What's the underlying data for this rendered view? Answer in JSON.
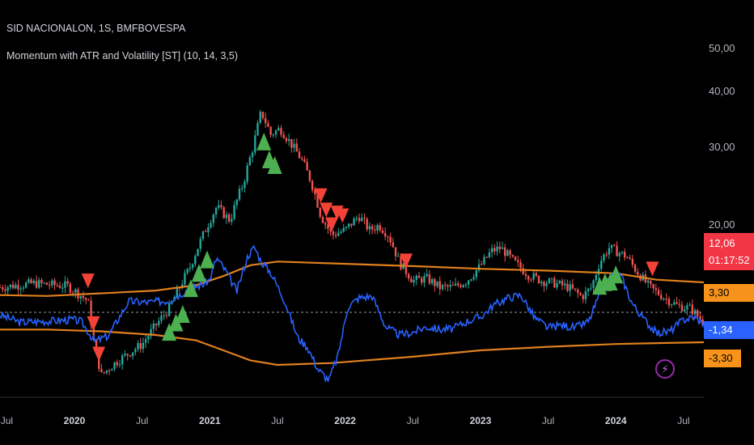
{
  "header": {
    "symbol_line": "SID NACIONALON, 1S, BMFBOVESPA",
    "indicator_line": "Momentum with ATR and Volatility [ST] (10, 14, 3,5)"
  },
  "badges": {
    "price": "12,06",
    "countdown": "01:17:52",
    "upper_band": "3,30",
    "momentum": "-1,34",
    "lower_band": "-3,30"
  },
  "colors": {
    "background": "#000000",
    "bull": "#26a69a",
    "bear": "#ef5350",
    "momentum_line": "#2962ff",
    "bands": "#e0801e",
    "buy_marker": "#4caf50",
    "sell_marker": "#f44336",
    "price_badge": "#f23645",
    "momentum_badge": "#2962ff",
    "band_badge": "#f7931a"
  },
  "chart_data": {
    "type": "line",
    "price_axis_ticks": [
      "50,00",
      "40,00",
      "30,00",
      "20,00"
    ],
    "price_axis_range": [
      8,
      55
    ],
    "x_axis_ticks": [
      {
        "label": "Jul",
        "year": false,
        "t": 2019.5
      },
      {
        "label": "2020",
        "year": true,
        "t": 2020.0
      },
      {
        "label": "Jul",
        "year": false,
        "t": 2020.5
      },
      {
        "label": "2021",
        "year": true,
        "t": 2021.0
      },
      {
        "label": "Jul",
        "year": false,
        "t": 2021.5
      },
      {
        "label": "2022",
        "year": true,
        "t": 2022.0
      },
      {
        "label": "Jul",
        "year": false,
        "t": 2022.5
      },
      {
        "label": "2023",
        "year": true,
        "t": 2023.0
      },
      {
        "label": "Jul",
        "year": false,
        "t": 2023.5
      },
      {
        "label": "2024",
        "year": true,
        "t": 2024.0
      },
      {
        "label": "Jul",
        "year": false,
        "t": 2024.5
      }
    ],
    "x_range": [
      2019.45,
      2024.65
    ],
    "price": {
      "name": "SID NACIONALON",
      "x": [
        2019.45,
        2019.7,
        2019.95,
        2020.1,
        2020.15,
        2020.2,
        2020.3,
        2020.5,
        2020.7,
        2020.85,
        2020.95,
        2021.05,
        2021.15,
        2021.25,
        2021.32,
        2021.38,
        2021.45,
        2021.52,
        2021.6,
        2021.68,
        2021.75,
        2021.82,
        2021.9,
        2022.0,
        2022.1,
        2022.18,
        2022.25,
        2022.32,
        2022.4,
        2022.5,
        2022.6,
        2022.7,
        2022.8,
        2022.9,
        2023.0,
        2023.08,
        2023.15,
        2023.25,
        2023.35,
        2023.45,
        2023.55,
        2023.65,
        2023.75,
        2023.82,
        2023.88,
        2023.95,
        2024.0,
        2024.08,
        2024.15,
        2024.25,
        2024.35,
        2024.45,
        2024.55,
        2024.65
      ],
      "values": [
        14.5,
        14.8,
        14.6,
        13.5,
        10.5,
        9.2,
        9.8,
        10.8,
        13.0,
        16.0,
        19.0,
        22.0,
        20.5,
        25.0,
        30.0,
        36.0,
        32.0,
        33.0,
        30.5,
        28.0,
        25.0,
        21.0,
        19.0,
        19.5,
        21.0,
        19.5,
        20.0,
        19.0,
        16.5,
        15.0,
        15.2,
        14.5,
        14.5,
        15.0,
        16.2,
        17.5,
        17.8,
        16.5,
        15.5,
        15.0,
        14.8,
        14.5,
        13.8,
        14.5,
        16.5,
        17.8,
        17.5,
        17.0,
        15.8,
        14.5,
        13.8,
        13.2,
        13.0,
        12.06
      ]
    },
    "series": [
      {
        "name": "Momentum",
        "x": [
          2019.45,
          2019.6,
          2019.75,
          2019.9,
          2019.98,
          2020.05,
          2020.15,
          2020.25,
          2020.4,
          2020.55,
          2020.7,
          2020.85,
          2020.95,
          2021.0,
          2021.05,
          2021.12,
          2021.2,
          2021.28,
          2021.33,
          2021.38,
          2021.45,
          2021.55,
          2021.65,
          2021.72,
          2021.8,
          2021.88,
          2021.95,
          2022.02,
          2022.1,
          2022.2,
          2022.3,
          2022.4,
          2022.5,
          2022.6,
          2022.7,
          2022.8,
          2022.9,
          2023.0,
          2023.1,
          2023.2,
          2023.3,
          2023.4,
          2023.5,
          2023.6,
          2023.7,
          2023.8,
          2023.88,
          2023.95,
          2024.0,
          2024.05,
          2024.12,
          2024.2,
          2024.3,
          2024.4,
          2024.5,
          2024.58,
          2024.65
        ],
        "values": [
          -0.3,
          -1.1,
          -1.0,
          -0.9,
          -0.8,
          -1.0,
          -3.2,
          -2.6,
          1.2,
          1.1,
          1.3,
          2.6,
          3.1,
          3.6,
          6.0,
          4.5,
          2.3,
          6.2,
          7.2,
          5.6,
          4.4,
          1.4,
          -2.8,
          -3.8,
          -6.3,
          -7.5,
          -4.6,
          0.6,
          1.6,
          1.8,
          -1.6,
          -2.5,
          -2.2,
          -1.6,
          -1.9,
          -1.8,
          -1.0,
          -0.5,
          0.8,
          1.6,
          1.9,
          -0.6,
          -1.7,
          -1.4,
          -1.7,
          -1.0,
          2.0,
          3.6,
          4.7,
          3.6,
          1.0,
          -0.6,
          -2.3,
          -2.1,
          -0.8,
          -0.5,
          -1.34
        ]
      },
      {
        "name": "Upper band",
        "x": [
          2019.45,
          2019.8,
          2020.2,
          2020.6,
          2020.9,
          2021.1,
          2021.3,
          2021.5,
          2021.9,
          2022.5,
          2023.0,
          2023.5,
          2024.0,
          2024.3,
          2024.65
        ],
        "values": [
          1.9,
          1.8,
          2.1,
          2.4,
          3.0,
          4.0,
          5.2,
          5.6,
          5.4,
          5.1,
          4.8,
          4.6,
          4.3,
          3.6,
          3.3
        ]
      },
      {
        "name": "Lower band",
        "x": [
          2019.45,
          2019.8,
          2020.2,
          2020.6,
          2020.9,
          2021.1,
          2021.3,
          2021.5,
          2021.9,
          2022.5,
          2023.0,
          2023.5,
          2024.0,
          2024.3,
          2024.65
        ],
        "values": [
          -1.9,
          -1.9,
          -2.1,
          -2.5,
          -3.1,
          -4.2,
          -5.3,
          -5.8,
          -5.6,
          -4.9,
          -4.2,
          -3.8,
          -3.5,
          -3.4,
          -3.3
        ]
      }
    ],
    "momentum_axis_range": [
      -8.5,
      20
    ],
    "sell_signals": [
      2020.1,
      2020.14,
      2020.18,
      2021.82,
      2021.86,
      2021.9,
      2021.94,
      2021.98,
      2022.45,
      2024.27
    ],
    "buy_signals": [
      2020.7,
      2020.75,
      2020.8,
      2020.86,
      2020.92,
      2020.98,
      2021.4,
      2021.44,
      2021.48,
      2023.88,
      2023.92,
      2023.96,
      2024.0
    ],
    "zero_line": true
  }
}
